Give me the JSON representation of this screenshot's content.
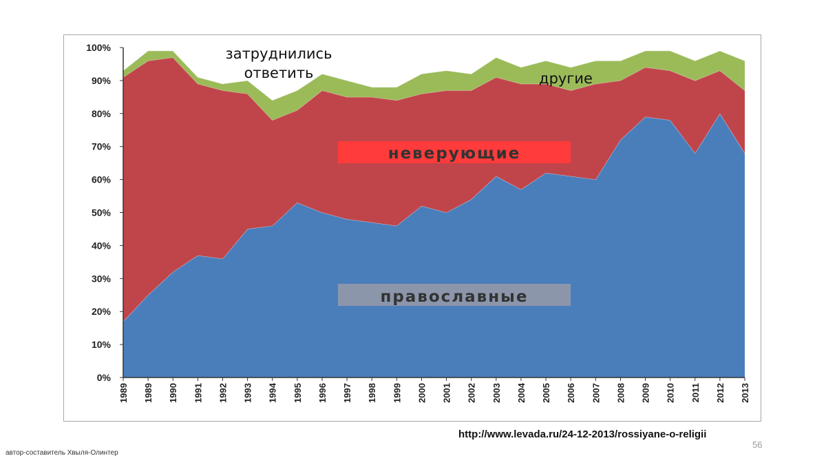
{
  "chart_data": {
    "type": "area",
    "stacked": true,
    "categories": [
      "1989",
      "1989",
      "1990",
      "1991",
      "1992",
      "1993",
      "1994",
      "1995",
      "1996",
      "1997",
      "1998",
      "1999",
      "2000",
      "2001",
      "2002",
      "2003",
      "2004",
      "2005",
      "2006",
      "2007",
      "2008",
      "2009",
      "2010",
      "2011",
      "2012",
      "2013"
    ],
    "ylim": [
      0,
      100
    ],
    "yticks": [
      "0%",
      "10%",
      "20%",
      "30%",
      "40%",
      "50%",
      "60%",
      "70%",
      "80%",
      "90%",
      "100%"
    ],
    "grid": false,
    "series": [
      {
        "name": "православные",
        "color": "#4a7ebb",
        "values": [
          17,
          25,
          32,
          37,
          36,
          45,
          46,
          53,
          50,
          48,
          47,
          46,
          52,
          50,
          54,
          61,
          57,
          62,
          61,
          60,
          72,
          79,
          78,
          68,
          80,
          68
        ]
      },
      {
        "name": "неверующие",
        "color": "#c0454a",
        "values": [
          74,
          71,
          65,
          52,
          51,
          41,
          32,
          28,
          37,
          37,
          38,
          38,
          34,
          37,
          33,
          30,
          32,
          27,
          26,
          29,
          18,
          15,
          15,
          22,
          13,
          19
        ]
      },
      {
        "name": "другие",
        "color": "#9bbb59",
        "values": [
          2,
          3,
          2,
          2,
          2,
          4,
          6,
          6,
          5,
          5,
          3,
          4,
          6,
          6,
          5,
          6,
          5,
          7,
          7,
          7,
          6,
          5,
          6,
          6,
          6,
          9
        ]
      }
    ],
    "annotations": {
      "undecided_line1": "затруднились",
      "undecided_line2": "ответить",
      "others": "другие",
      "nonbelievers": "неверующие",
      "orthodox": "православные"
    }
  },
  "source": "http://www.levada.ru/24-12-2013/rossiyane-o-religii",
  "page_number": "56",
  "author": "автор-составитель Хвыля-Олинтер"
}
